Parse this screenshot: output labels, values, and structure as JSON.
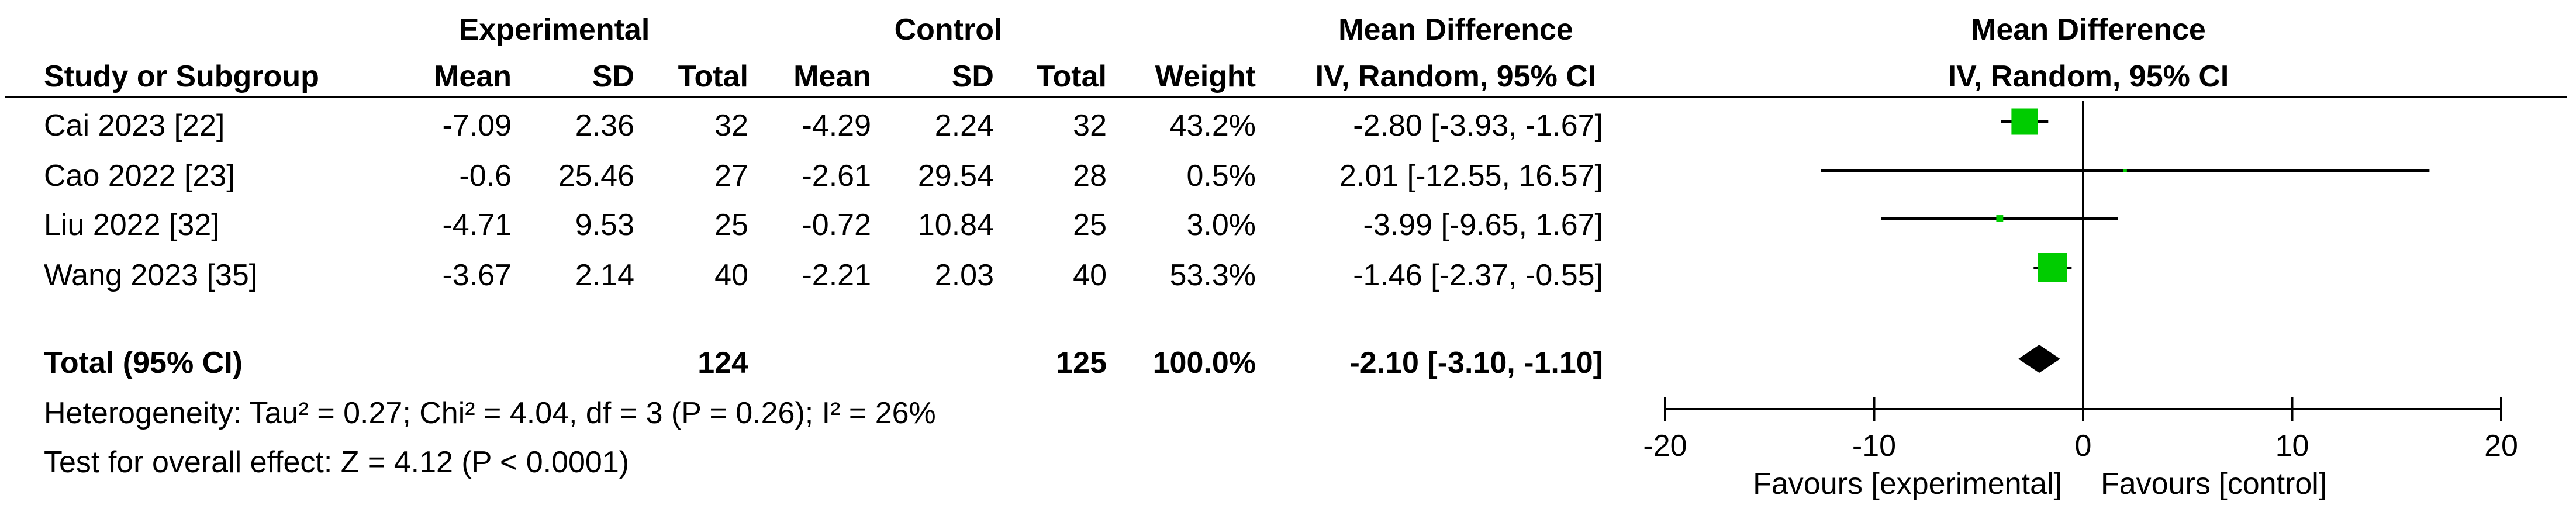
{
  "headers": {
    "group_experimental": "Experimental",
    "group_control": "Control",
    "study_col": "Study or Subgroup",
    "mean": "Mean",
    "sd": "SD",
    "total": "Total",
    "weight": "Weight",
    "md_title": "Mean Difference",
    "md_method": "IV, Random, 95% CI",
    "plot_title": "Mean Difference",
    "plot_method": "IV, Random, 95% CI"
  },
  "studies": [
    {
      "name": "Cai 2023 [22]",
      "e_mean": "-7.09",
      "e_sd": "2.36",
      "e_total": "32",
      "c_mean": "-4.29",
      "c_sd": "2.24",
      "c_total": "32",
      "weight": "43.2%",
      "ci_text": "-2.80 [-3.93, -1.67]"
    },
    {
      "name": "Cao 2022 [23]",
      "e_mean": "-0.6",
      "e_sd": "25.46",
      "e_total": "27",
      "c_mean": "-2.61",
      "c_sd": "29.54",
      "c_total": "28",
      "weight": "0.5%",
      "ci_text": "2.01 [-12.55, 16.57]"
    },
    {
      "name": "Liu 2022 [32]",
      "e_mean": "-4.71",
      "e_sd": "9.53",
      "e_total": "25",
      "c_mean": "-0.72",
      "c_sd": "10.84",
      "c_total": "25",
      "weight": "3.0%",
      "ci_text": "-3.99 [-9.65, 1.67]"
    },
    {
      "name": "Wang 2023 [35]",
      "e_mean": "-3.67",
      "e_sd": "2.14",
      "e_total": "40",
      "c_mean": "-2.21",
      "c_sd": "2.03",
      "c_total": "40",
      "weight": "53.3%",
      "ci_text": "-1.46 [-2.37, -0.55]"
    }
  ],
  "total": {
    "label": "Total (95% CI)",
    "e_total": "124",
    "c_total": "125",
    "weight": "100.0%",
    "ci_text": "-2.10 [-3.10, -1.10]"
  },
  "heterogeneity": "Heterogeneity: Tau² = 0.27; Chi² = 4.04, df = 3 (P = 0.26); I² = 26%",
  "overall_effect": "Test for overall effect: Z = 4.12 (P < 0.0001)",
  "favours_left": "Favours [experimental]",
  "favours_right": "Favours [control]",
  "colors": {
    "square": "#00cc00",
    "diamond": "#000000",
    "line": "#000000",
    "text": "#000000"
  },
  "chart_data": {
    "type": "forest",
    "xlim": [
      -20,
      20
    ],
    "xticks": [
      -20,
      -10,
      0,
      10,
      20
    ],
    "tick_labels": [
      "-20",
      "-10",
      "0",
      "10",
      "20"
    ],
    "studies": [
      {
        "name": "Cai 2023 [22]",
        "md": -2.8,
        "lo": -3.93,
        "hi": -1.67,
        "weight": 43.2
      },
      {
        "name": "Cao 2022 [23]",
        "md": 2.01,
        "lo": -12.55,
        "hi": 16.57,
        "weight": 0.5
      },
      {
        "name": "Liu 2022 [32]",
        "md": -3.99,
        "lo": -9.65,
        "hi": 1.67,
        "weight": 3.0
      },
      {
        "name": "Wang 2023 [35]",
        "md": -1.46,
        "lo": -2.37,
        "hi": -0.55,
        "weight": 53.3
      }
    ],
    "pooled": {
      "md": -2.1,
      "lo": -3.1,
      "hi": -1.1
    }
  }
}
